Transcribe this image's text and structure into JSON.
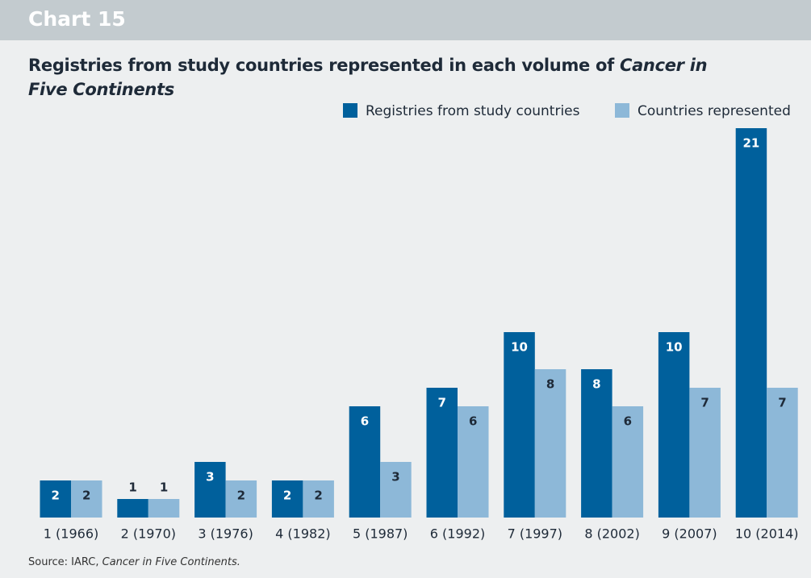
{
  "header": "Chart 15",
  "chart_data": {
    "type": "bar",
    "title": [
      "Registries from study countries represented in each volume of ",
      "Cancer in Five Continents"
    ],
    "source": [
      "Source: IARC, ",
      "Cancer in Five Continents."
    ],
    "categories": [
      "1 (1966)",
      "2 (1970)",
      "3 (1976)",
      "4 (1982)",
      "5 (1987)",
      "6 (1992)",
      "7 (1997)",
      "8 (2002)",
      "9 (2007)",
      "10 (2014)"
    ],
    "series": [
      {
        "name": "Registries from study countries",
        "color": "#00609c",
        "values": [
          2,
          1,
          3,
          2,
          6,
          7,
          10,
          8,
          10,
          21
        ]
      },
      {
        "name": "Countries represented",
        "color": "#8db8d8",
        "values": [
          2,
          1,
          2,
          2,
          3,
          6,
          8,
          6,
          7,
          7
        ]
      }
    ]
  }
}
